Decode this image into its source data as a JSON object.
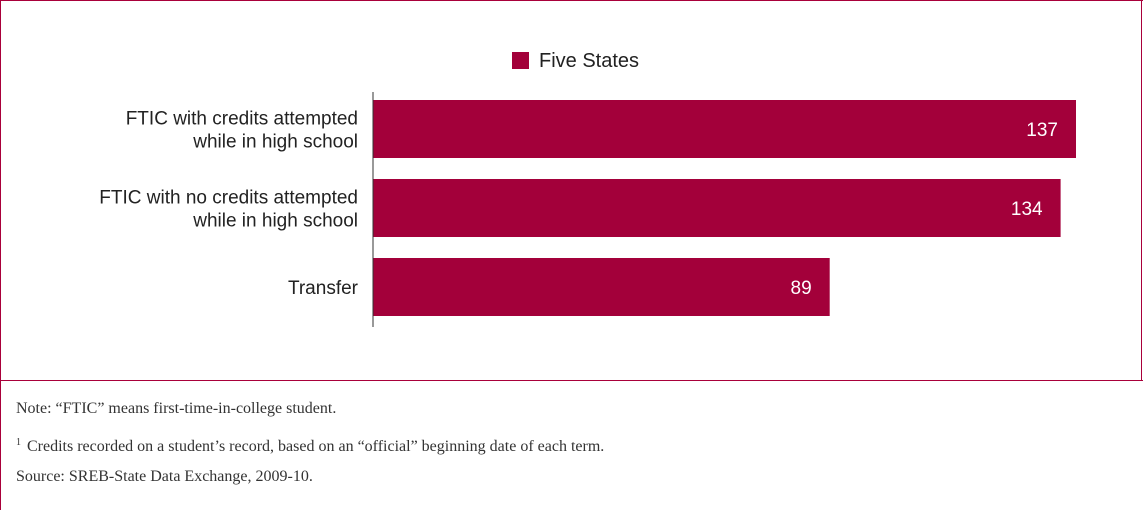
{
  "colors": {
    "bar": "#a3003a",
    "border": "#a9003a",
    "text": "#222222"
  },
  "chart_data": {
    "type": "bar",
    "orientation": "horizontal",
    "categories": [
      [
        "FTIC with credits attempted",
        "while in high school"
      ],
      [
        "FTIC with no credits attempted",
        "while in high school"
      ],
      [
        "Transfer"
      ]
    ],
    "series": [
      {
        "name": "Five States",
        "values": [
          137,
          134,
          89
        ]
      }
    ],
    "data_labels": [
      "137",
      "134",
      "89"
    ],
    "xlim": [
      0,
      140
    ],
    "legend_position": "top-center",
    "grid": false
  },
  "notes": {
    "note": "Note: “FTIC” means first-time-in-college student.",
    "footnote_marker": "1",
    "footnote": "Credits recorded on a student’s record, based on an “official” beginning date of each term.",
    "source": "Source: SREB-State Data Exchange, 2009-10."
  }
}
